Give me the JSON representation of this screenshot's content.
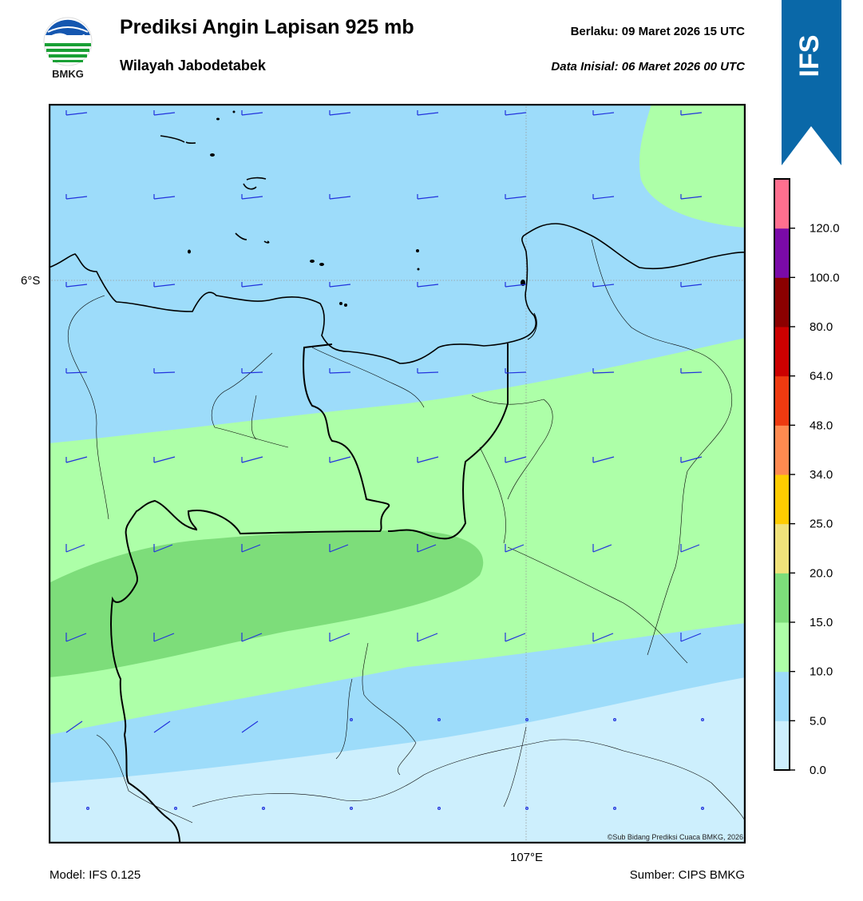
{
  "header": {
    "title": "Prediksi Angin Lapisan 925 mb",
    "subtitle": "Wilayah Jabodetabek",
    "valid_label": "Berlaku:  09 Maret 2026 15 UTC",
    "init_label": "Data Inisial:  06 Maret 2026 00 UTC"
  },
  "logo": {
    "text": "BMKG"
  },
  "badge": {
    "text": "IFS",
    "color": "#0a68a8"
  },
  "map": {
    "lat_label": "6°S",
    "lon_label": "107°E",
    "copyright": "©Sub Bidang Prediksi Cuaca BMKG, 2026",
    "colors": {
      "band_0_5": "#cdeffd",
      "band_5_10": "#9ddcfa",
      "band_10_15": "#adffa8",
      "band_15_20": "#7ddd7a",
      "coast": "#000000",
      "barb": "#2233dd"
    }
  },
  "colorbar": {
    "ticks": [
      "120.0",
      "100.0",
      "80.0",
      "64.0",
      "48.0",
      "34.0",
      "25.0",
      "20.0",
      "15.0",
      "10.0",
      "5.0",
      "0.0"
    ],
    "colors": [
      "#cdeffd",
      "#9ddcfa",
      "#adffa8",
      "#7ddd7a",
      "#f0e27a",
      "#ffcc00",
      "#ff8a50",
      "#ee3a10",
      "#cc0000",
      "#8b0000",
      "#7a0aa8",
      "#ff6f8f"
    ]
  },
  "footer": {
    "model": "Model: IFS 0.125",
    "source": "Sumber: CIPS BMKG"
  }
}
